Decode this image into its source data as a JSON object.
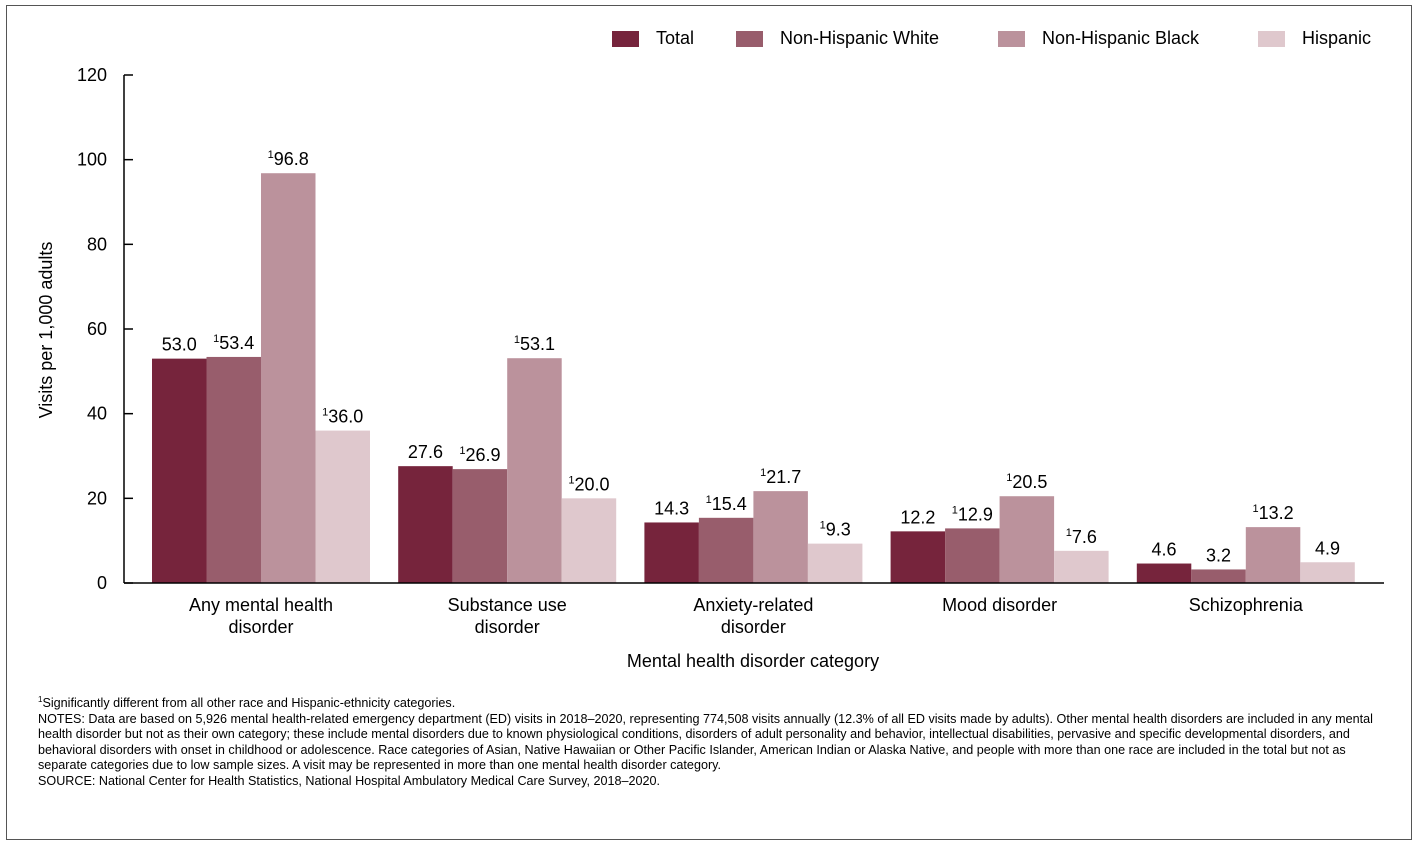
{
  "chart_data": {
    "type": "bar",
    "xlabel": "Mental health disorder category",
    "ylabel": "Visits per 1,000 adults",
    "ylim": [
      0,
      120
    ],
    "yticks": [
      0,
      20,
      40,
      60,
      80,
      100,
      120
    ],
    "legend_position": "top-right",
    "categories": [
      [
        "Any mental health",
        "disorder"
      ],
      [
        "Substance use",
        "disorder"
      ],
      [
        "Anxiety-related",
        "disorder"
      ],
      [
        "Mood disorder"
      ],
      [
        "Schizophrenia"
      ]
    ],
    "series": [
      {
        "name": "Total",
        "color": "#76243c",
        "values": [
          53.0,
          27.6,
          14.3,
          12.2,
          4.6
        ],
        "labels": [
          "53.0",
          "27.6",
          "14.3",
          "12.2",
          "4.6"
        ],
        "footnote": [
          false,
          false,
          false,
          false,
          false
        ]
      },
      {
        "name": "Non-Hispanic White",
        "color": "#985d6c",
        "values": [
          53.4,
          26.9,
          15.4,
          12.9,
          3.2
        ],
        "labels": [
          "53.4",
          "26.9",
          "15.4",
          "12.9",
          "3.2"
        ],
        "footnote": [
          true,
          true,
          true,
          true,
          false
        ]
      },
      {
        "name": "Non-Hispanic Black",
        "color": "#bb929c",
        "values": [
          96.8,
          53.1,
          21.7,
          20.5,
          13.2
        ],
        "labels": [
          "96.8",
          "53.1",
          "21.7",
          "20.5",
          "13.2"
        ],
        "footnote": [
          true,
          true,
          true,
          true,
          true
        ]
      },
      {
        "name": "Hispanic",
        "color": "#dfc8cd",
        "values": [
          36.0,
          20.0,
          9.3,
          7.6,
          4.9
        ],
        "labels": [
          "36.0",
          "20.0",
          "9.3",
          "7.6",
          "4.9"
        ],
        "footnote": [
          true,
          true,
          true,
          true,
          false
        ]
      }
    ],
    "footnote_marker": "1"
  },
  "notes": {
    "footnote_marker": "1",
    "footnote": "Significantly different from all other race and Hispanic-ethnicity categories.",
    "notes": "NOTES: Data are based on 5,926 mental health-related emergency department (ED) visits in 2018–2020, representing 774,508 visits annually (12.3% of all ED visits made by adults). Other mental health disorders are included in any mental health disorder but not as their own category; these include mental disorders due to known physiological conditions, disorders of adult personality and behavior, intellectual disabilities, pervasive and specific developmental disorders, and behavioral disorders with onset in childhood or adolescence. Race categories of Asian, Native Hawaiian or Other Pacific Islander, American Indian or Alaska Native, and people with more than one race are included in the total but not as separate categories due to low sample sizes. A visit may be represented in more than one mental health disorder category.",
    "source": "SOURCE: National Center for Health Statistics, National Hospital Ambulatory Medical Care Survey, 2018–2020."
  }
}
